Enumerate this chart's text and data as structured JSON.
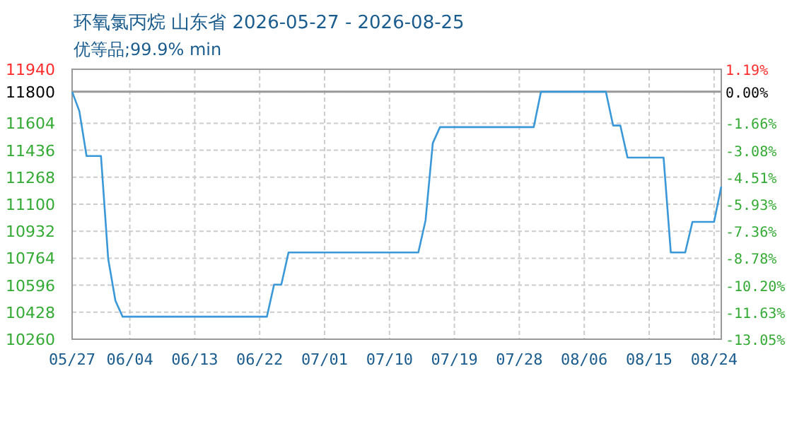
{
  "chart_data": {
    "type": "line",
    "title": "环氧氯丙烷 山东省 2026-05-27 - 2026-08-25",
    "subtitle": "优等品;99.9% min",
    "x": [
      "2026-05-27",
      "2026-05-28",
      "2026-05-29",
      "2026-05-31",
      "2026-06-01",
      "2026-06-02",
      "2026-06-03",
      "2026-06-23",
      "2026-06-24",
      "2026-06-25",
      "2026-06-26",
      "2026-07-14",
      "2026-07-15",
      "2026-07-16",
      "2026-07-17",
      "2026-07-30",
      "2026-07-31",
      "2026-08-09",
      "2026-08-10",
      "2026-08-11",
      "2026-08-12",
      "2026-08-17",
      "2026-08-18",
      "2026-08-20",
      "2026-08-21",
      "2026-08-24",
      "2026-08-25"
    ],
    "series": [
      {
        "color": "#3a98d8",
        "values": [
          11800,
          11680,
          11400,
          11400,
          10760,
          10500,
          10400,
          10400,
          10600,
          10600,
          10800,
          10800,
          11000,
          11480,
          11580,
          11580,
          11800,
          11800,
          11590,
          11590,
          11390,
          11390,
          10800,
          10800,
          10990,
          10990,
          11210
        ]
      }
    ],
    "xlim": [
      "2026-05-27",
      "2026-08-25"
    ],
    "xticks": [
      {
        "value": "2026-05-27",
        "label": "05/27"
      },
      {
        "value": "2026-06-04",
        "label": "06/04"
      },
      {
        "value": "2026-06-13",
        "label": "06/13"
      },
      {
        "value": "2026-06-22",
        "label": "06/22"
      },
      {
        "value": "2026-07-01",
        "label": "07/01"
      },
      {
        "value": "2026-07-10",
        "label": "07/10"
      },
      {
        "value": "2026-07-19",
        "label": "07/19"
      },
      {
        "value": "2026-07-28",
        "label": "07/28"
      },
      {
        "value": "2026-08-06",
        "label": "08/06"
      },
      {
        "value": "2026-08-15",
        "label": "08/15"
      },
      {
        "value": "2026-08-24",
        "label": "08/24"
      }
    ],
    "ylim": [
      10260,
      11940
    ],
    "yticks": [
      10260,
      10428,
      10596,
      10764,
      10932,
      11100,
      11268,
      11436,
      11604,
      11800,
      11940
    ],
    "y2lim": [
      -13.05,
      1.19
    ],
    "y2ticks": [
      {
        "value": -13.05,
        "label": "-13.05%"
      },
      {
        "value": -11.63,
        "label": "-11.63%"
      },
      {
        "value": -10.2,
        "label": "-10.20%"
      },
      {
        "value": -8.78,
        "label": "-8.78%"
      },
      {
        "value": -7.36,
        "label": "-7.36%"
      },
      {
        "value": -5.93,
        "label": "-5.93%"
      },
      {
        "value": -4.51,
        "label": "-4.51%"
      },
      {
        "value": -3.08,
        "label": "-3.08%"
      },
      {
        "value": -1.66,
        "label": "-1.66%"
      },
      {
        "value": 0,
        "label": "0.00%"
      },
      {
        "value": 1.19,
        "label": "1.19%"
      }
    ],
    "ref_lines": [
      {
        "axis": "y",
        "value": 11800,
        "color": "#999999"
      }
    ],
    "grid": true,
    "marker": "none",
    "line_style": "solid"
  }
}
